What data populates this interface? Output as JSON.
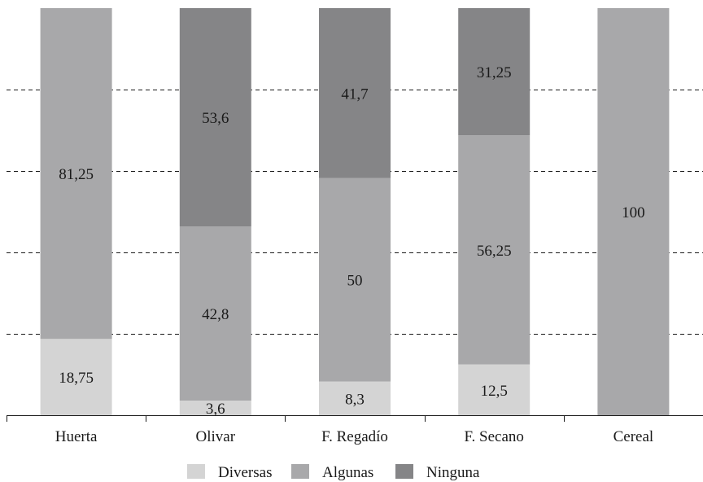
{
  "chart_data": {
    "type": "bar",
    "stacked": true,
    "normalized_percent": true,
    "categories": [
      "Huerta",
      "Olivar",
      "F. Regadío",
      "F. Secano",
      "Cereal"
    ],
    "series": [
      {
        "name": "Diversas",
        "color": "#d4d4d4",
        "values": [
          18.75,
          3.6,
          8.3,
          12.5,
          0
        ],
        "labels": [
          "18,75",
          "3,6",
          "8,3",
          "12,5",
          ""
        ]
      },
      {
        "name": "Algunas",
        "color": "#a8a8aa",
        "values": [
          81.25,
          42.8,
          50,
          56.25,
          100
        ],
        "labels": [
          "81,25",
          "42,8",
          "50",
          "56,25",
          "100"
        ]
      },
      {
        "name": "Ninguna",
        "color": "#858587",
        "values": [
          0,
          53.6,
          41.7,
          31.25,
          0
        ],
        "labels": [
          "",
          "53,6",
          "41,7",
          "31,25",
          ""
        ]
      }
    ],
    "ylim": [
      0,
      100
    ],
    "grid": {
      "y": true,
      "style": "dashed"
    },
    "legend": "bottom-center"
  }
}
